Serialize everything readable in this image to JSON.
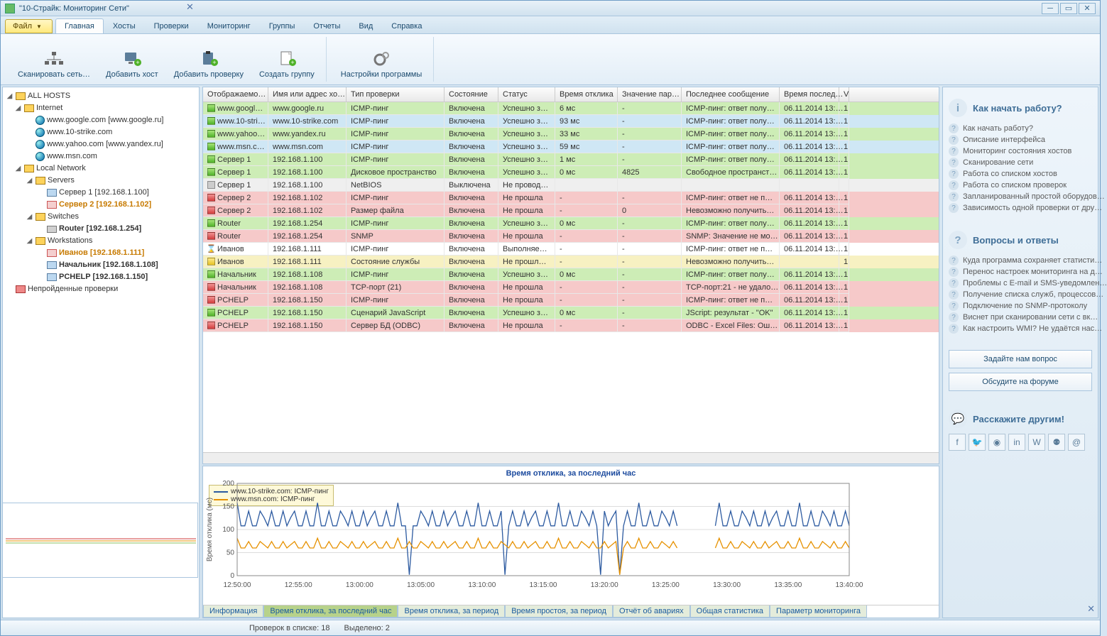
{
  "title": "\"10-Страйк: Мониторинг Сети\"",
  "menu": {
    "file": "Файл",
    "tabs": [
      "Главная",
      "Хосты",
      "Проверки",
      "Мониторинг",
      "Группы",
      "Отчеты",
      "Вид",
      "Справка"
    ],
    "activeTab": 0
  },
  "toolbar": {
    "scan": "Сканировать сеть…",
    "addHost": "Добавить хост",
    "addCheck": "Добавить проверку",
    "createGroup": "Создать группу",
    "settings": "Настройки программы"
  },
  "tree": {
    "all": "ALL HOSTS",
    "internet": "Internet",
    "inetItems": [
      "www.google.com [www.google.ru]",
      "www.10-strike.com",
      "www.yahoo.com [www.yandex.ru]",
      "www.msn.com"
    ],
    "local": "Local Network",
    "servers": "Servers",
    "srv1": "Сервер 1 [192.168.1.100]",
    "srv2": "Сервер 2 [192.168.1.102]",
    "switches": "Switches",
    "router": "Router [192.168.1.254]",
    "ws": "Workstations",
    "wsItems": [
      {
        "label": "Иванов [192.168.1.111]",
        "orange": true
      },
      {
        "label": "Начальник [192.168.1.108]",
        "orange": false
      },
      {
        "label": "PCHELP [192.168.1.150]",
        "orange": false
      }
    ],
    "failed": "Непройденные проверки"
  },
  "grid": {
    "cols": [
      {
        "label": "Отображаемо…",
        "w": 92
      },
      {
        "label": "Имя или адрес хо…",
        "w": 110
      },
      {
        "label": "Тип проверки",
        "w": 138
      },
      {
        "label": "Состояние",
        "w": 76
      },
      {
        "label": "Статус",
        "w": 80
      },
      {
        "label": "Время отклика",
        "w": 88
      },
      {
        "label": "Значение пар…",
        "w": 90
      },
      {
        "label": "Последнее сообщение",
        "w": 138
      },
      {
        "label": "Время послед…",
        "w": 84
      },
      {
        "label": "V",
        "w": 14
      }
    ],
    "rows": [
      {
        "row": "green",
        "sq": "green",
        "cells": [
          "www.googl…",
          "www.google.ru",
          "ICMP-пинг",
          "Включена",
          "Успешно з…",
          "6 мс",
          "-",
          "ICMP-пинг: ответ полу…",
          "06.11.2014 13:…",
          "1"
        ]
      },
      {
        "row": "blue",
        "sq": "green",
        "cells": [
          "www.10-stri…",
          "www.10-strike.com",
          "ICMP-пинг",
          "Включена",
          "Успешно з…",
          "93 мс",
          "-",
          "ICMP-пинг: ответ полу…",
          "06.11.2014 13:…",
          "1"
        ]
      },
      {
        "row": "green",
        "sq": "green",
        "cells": [
          "www.yahoo…",
          "www.yandex.ru",
          "ICMP-пинг",
          "Включена",
          "Успешно з…",
          "33 мс",
          "-",
          "ICMP-пинг: ответ полу…",
          "06.11.2014 13:…",
          "1"
        ]
      },
      {
        "row": "blue",
        "sq": "green",
        "cells": [
          "www.msn.c…",
          "www.msn.com",
          "ICMP-пинг",
          "Включена",
          "Успешно з…",
          "59 мс",
          "-",
          "ICMP-пинг: ответ полу…",
          "06.11.2014 13:…",
          "1"
        ]
      },
      {
        "row": "green",
        "sq": "green",
        "cells": [
          "Сервер 1",
          "192.168.1.100",
          "ICMP-пинг",
          "Включена",
          "Успешно з…",
          "1 мс",
          "-",
          "ICMP-пинг: ответ полу…",
          "06.11.2014 13:…",
          "1"
        ]
      },
      {
        "row": "green",
        "sq": "green",
        "cells": [
          "Сервер 1",
          "192.168.1.100",
          "Дисковое пространство",
          "Включена",
          "Успешно з…",
          "0 мс",
          "4825",
          "Свободное пространст…",
          "06.11.2014 13:…",
          "1"
        ]
      },
      {
        "row": "grey",
        "sq": "grey",
        "cells": [
          "Сервер 1",
          "192.168.1.100",
          "NetBIOS",
          "Выключена",
          "Не провод…",
          "",
          "",
          "",
          "",
          ""
        ]
      },
      {
        "row": "red",
        "sq": "red",
        "cells": [
          "Сервер 2",
          "192.168.1.102",
          "ICMP-пинг",
          "Включена",
          "Не прошла",
          "-",
          "-",
          "ICMP-пинг: ответ не п…",
          "06.11.2014 13:…",
          "1"
        ]
      },
      {
        "row": "red",
        "sq": "red",
        "cells": [
          "Сервер 2",
          "192.168.1.102",
          "Размер файла",
          "Включена",
          "Не прошла",
          "-",
          "0",
          "Невозможно получить…",
          "06.11.2014 13:…",
          "1"
        ]
      },
      {
        "row": "green",
        "sq": "green",
        "cells": [
          "Router",
          "192.168.1.254",
          "ICMP-пинг",
          "Включена",
          "Успешно з…",
          "0 мс",
          "-",
          "ICMP-пинг: ответ полу…",
          "06.11.2014 13:…",
          "1"
        ]
      },
      {
        "row": "red",
        "sq": "red",
        "cells": [
          "Router",
          "192.168.1.254",
          "SNMP",
          "Включена",
          "Не прошла",
          "-",
          "-",
          "SNMP: Значение не мо…",
          "06.11.2014 13:…",
          "1"
        ]
      },
      {
        "row": "white",
        "sq": "hourglass",
        "cells": [
          "Иванов",
          "192.168.1.111",
          "ICMP-пинг",
          "Включена",
          "Выполняе…",
          "-",
          "-",
          "ICMP-пинг: ответ не п…",
          "06.11.2014 13:…",
          "1"
        ]
      },
      {
        "row": "yellow",
        "sq": "yellow",
        "cells": [
          "Иванов",
          "192.168.1.111",
          "Состояние службы",
          "Включена",
          "Не прошл…",
          "-",
          "-",
          "Невозможно получить…",
          "",
          "1"
        ]
      },
      {
        "row": "green",
        "sq": "green",
        "cells": [
          "Начальник",
          "192.168.1.108",
          "ICMP-пинг",
          "Включена",
          "Успешно з…",
          "0 мс",
          "-",
          "ICMP-пинг: ответ полу…",
          "06.11.2014 13:…",
          "1"
        ]
      },
      {
        "row": "red",
        "sq": "red",
        "cells": [
          "Начальник",
          "192.168.1.108",
          "TCP-порт (21)",
          "Включена",
          "Не прошла",
          "-",
          "-",
          "TCP-порт:21 - не удало…",
          "06.11.2014 13:…",
          "1"
        ]
      },
      {
        "row": "red",
        "sq": "red",
        "cells": [
          "PCHELP",
          "192.168.1.150",
          "ICMP-пинг",
          "Включена",
          "Не прошла",
          "-",
          "-",
          "ICMP-пинг: ответ не п…",
          "06.11.2014 13:…",
          "1"
        ]
      },
      {
        "row": "green",
        "sq": "green",
        "cells": [
          "PCHELP",
          "192.168.1.150",
          "Сценарий JavaScript",
          "Включена",
          "Успешно з…",
          "0 мс",
          "-",
          "JScript: результат - \"OK\"",
          "06.11.2014 13:…",
          "1"
        ]
      },
      {
        "row": "red",
        "sq": "red",
        "cells": [
          "PCHELP",
          "192.168.1.150",
          "Сервер БД (ODBC)",
          "Включена",
          "Не прошла",
          "-",
          "-",
          "ODBC - Excel Files: Ош…",
          "06.11.2014 13:…",
          "1"
        ]
      }
    ]
  },
  "chart": {
    "title": "Время отклика, за последний час",
    "yLabel": "Время отклика (мс)",
    "legend": [
      {
        "color": "#2c5aa0",
        "label": "www.10-strike.com: ICMP-пинг"
      },
      {
        "color": "#e69100",
        "label": "www.msn.com: ICMP-пинг"
      }
    ],
    "yTicks": [
      0,
      50,
      100,
      150,
      200
    ],
    "xTicks": [
      "12:50:00",
      "12:55:00",
      "13:00:00",
      "13:05:00",
      "13:10:00",
      "13:15:00",
      "13:20:00",
      "13:25:00",
      "13:30:00",
      "13:35:00",
      "13:40:00"
    ],
    "tabs": [
      "Информация",
      "Время отклика, за последний час",
      "Время отклика, за период",
      "Время простоя, за период",
      "Отчёт об авариях",
      "Общая статистика",
      "Параметр мониторинга"
    ],
    "activeTab": 1,
    "series1Color": "#2c5aa0",
    "series2Color": "#e69100"
  },
  "rightPanel": {
    "howTo": "Как начать работу?",
    "howToLinks": [
      "Как начать работу?",
      "Описание интерфейса",
      "Мониторинг состояния хостов",
      "Сканирование сети",
      "Работа со списком хостов",
      "Работа со списком проверок",
      "Запланированный простой оборудов…",
      "Зависимость одной проверки от дру…"
    ],
    "faq": "Вопросы и ответы",
    "faqLinks": [
      "Куда программа сохраняет статисти…",
      "Перенос настроек мониторинга на д…",
      "Проблемы с E-mail и SMS-уведомлен…",
      "Получение списка служб, процессов…",
      "Подключение по SNMP-протоколу",
      "Виснет при сканировании сети с вк…",
      "Как настроить WMI? Не удаётся нас…"
    ],
    "askBtn": "Задайте нам вопрос",
    "forumBtn": "Обсудите на форуме",
    "tell": "Расскажите другим!"
  },
  "status": {
    "checks": "Проверок в списке: 18",
    "selected": "Выделено: 2"
  }
}
